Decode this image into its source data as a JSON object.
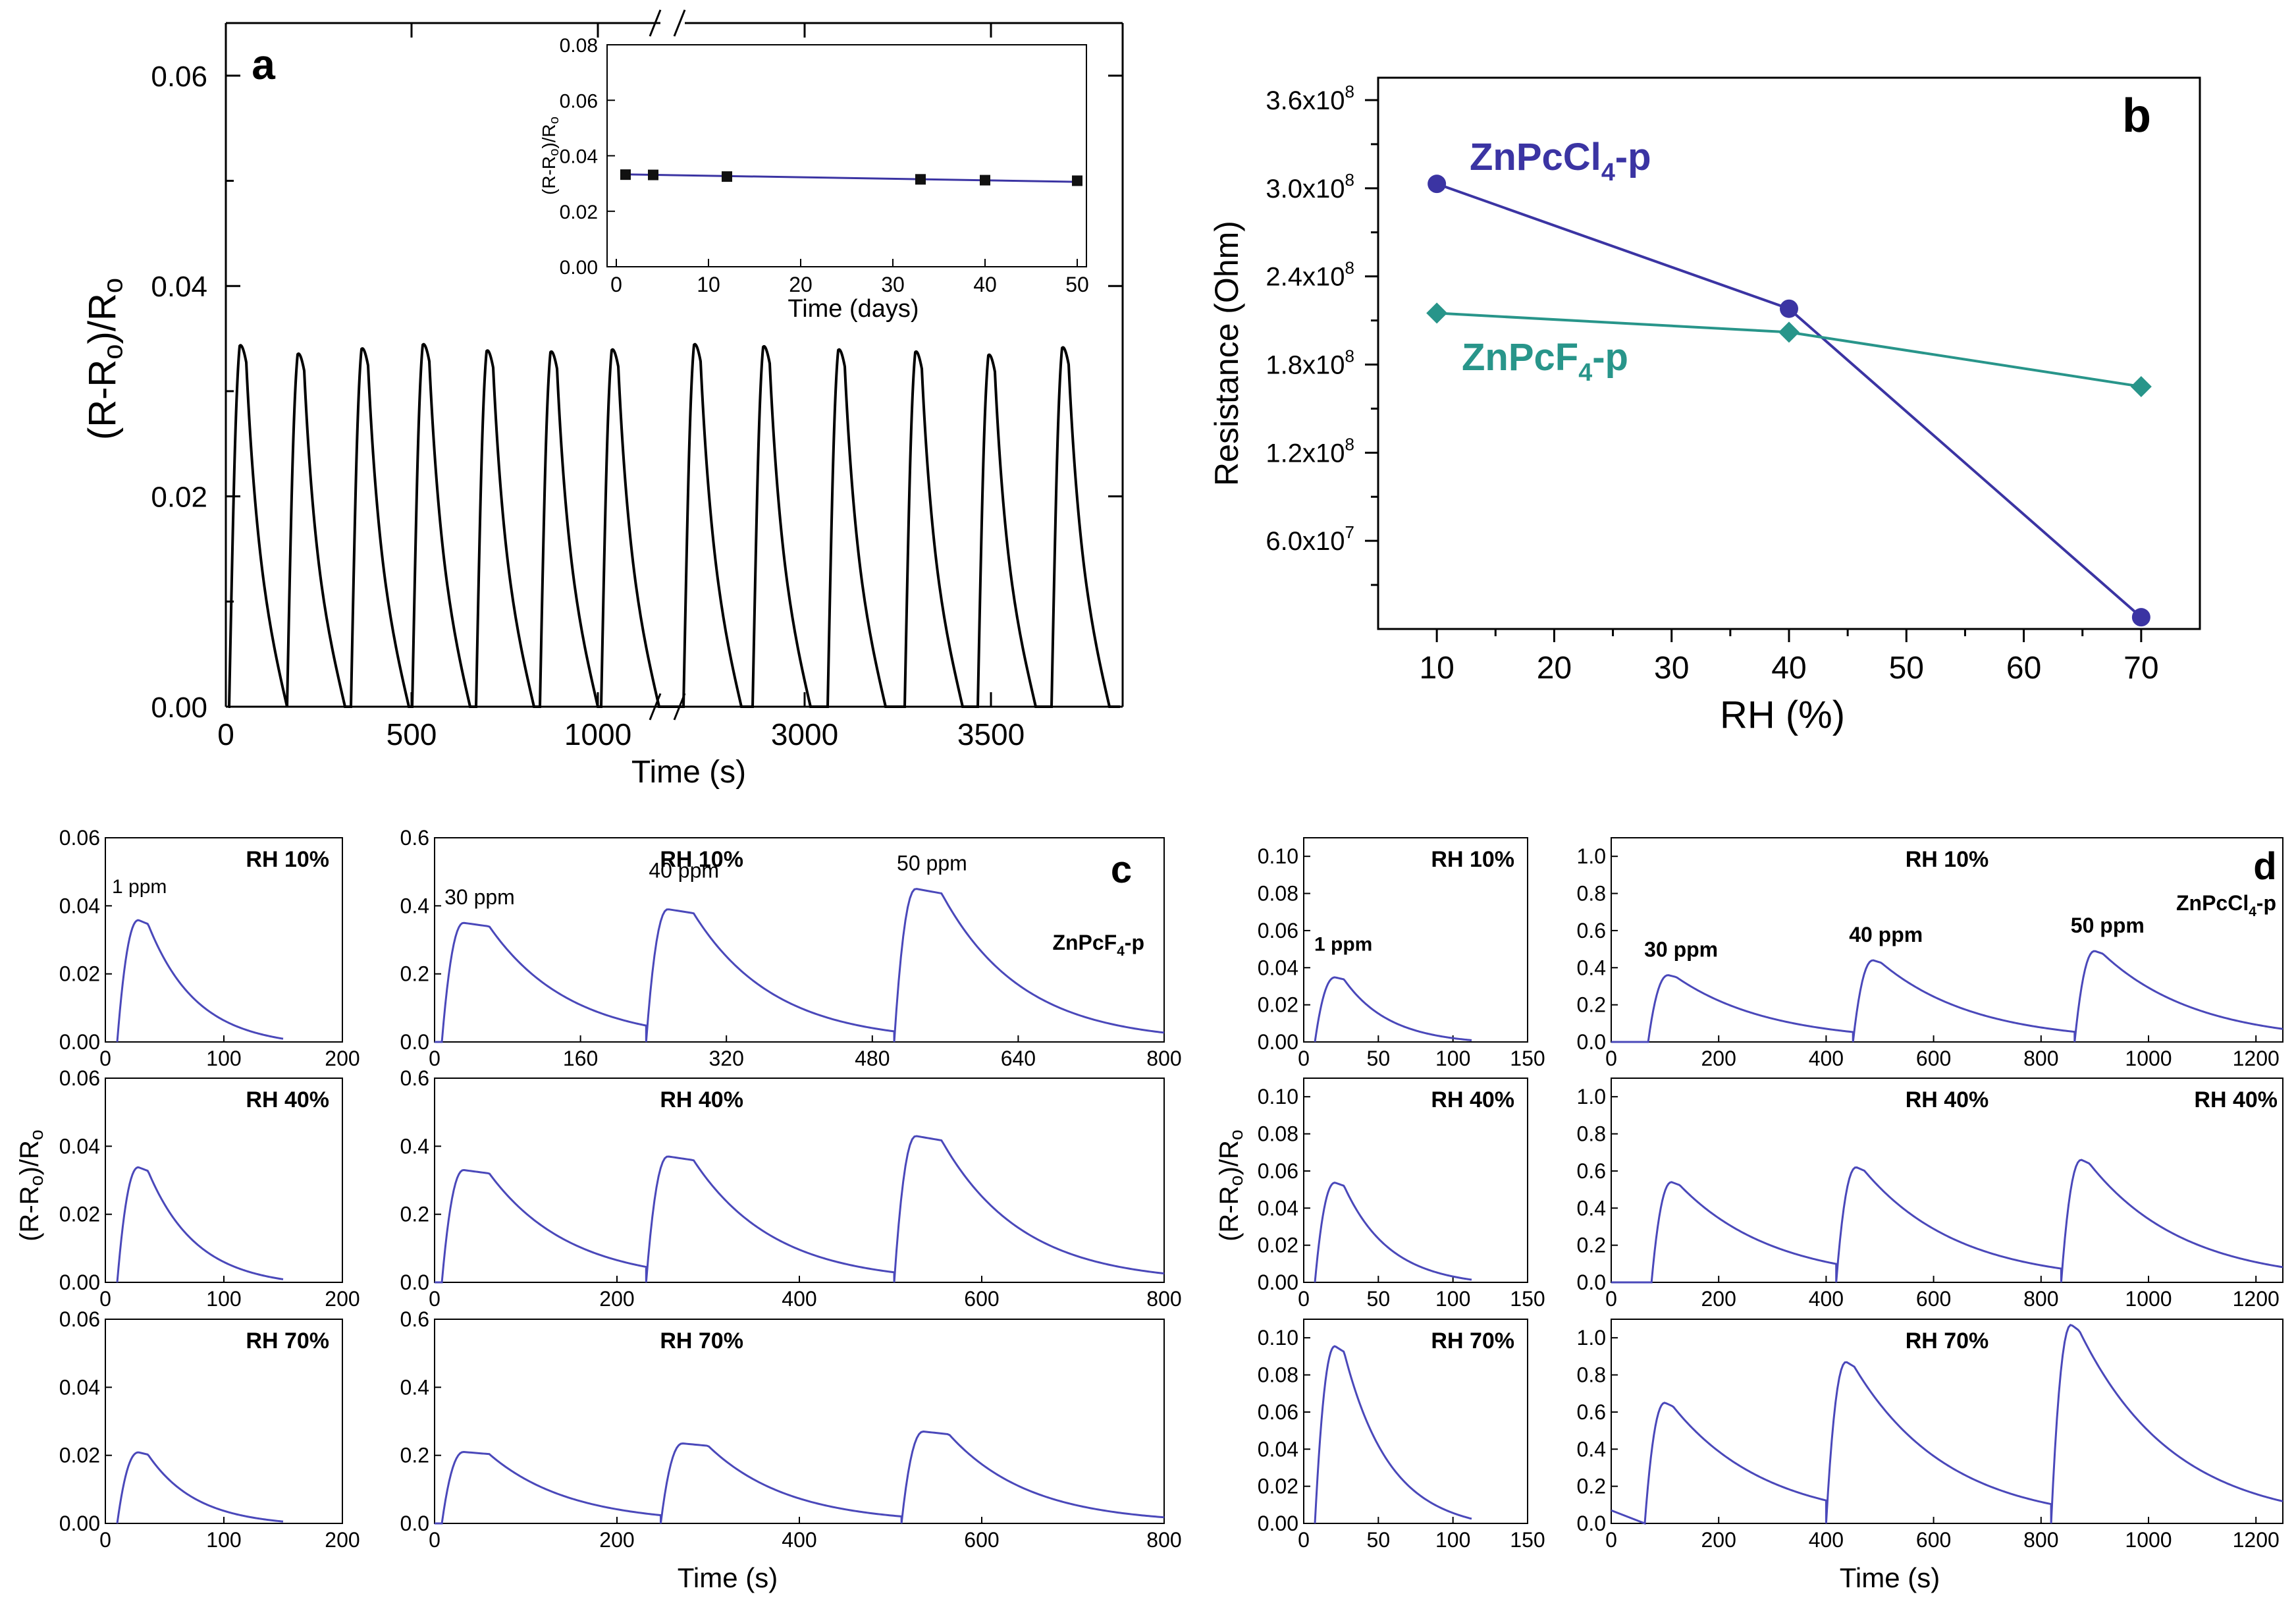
{
  "colors": {
    "axis": "#000000",
    "blue": "#3b34a3",
    "teal": "#28958a",
    "trace": "#4a48ba"
  },
  "chart_data": [
    {
      "id": "a",
      "type": "line",
      "panel_label": "a",
      "xlabel": "Time (s)",
      "ylabel": "(R-Ro)/Ro",
      "ylim": [
        0,
        0.065
      ],
      "yticks": [
        "0.00",
        "0.02",
        "0.04",
        "0.06"
      ],
      "xticks": [
        "0",
        "500",
        "1000",
        "3000",
        "3500"
      ],
      "series": [
        {
          "name": "response",
          "peak_values": [
            0.0343,
            0.0335,
            0.034,
            0.0344,
            0.0338,
            0.0337,
            0.0339,
            0.0344,
            0.0342,
            0.0339,
            0.0337,
            0.0334,
            0.0341
          ]
        }
      ],
      "inset": {
        "type": "line",
        "xlabel": "Time (days)",
        "ylabel": "(R-Ro)/Ro",
        "xlim": [
          0,
          50
        ],
        "ylim": [
          0,
          0.08
        ],
        "xticks": [
          "0",
          "10",
          "20",
          "30",
          "40",
          "50"
        ],
        "yticks": [
          "0.00",
          "0.02",
          "0.04",
          "0.06",
          "0.08"
        ],
        "x": [
          1,
          4,
          12,
          33,
          40,
          50
        ],
        "y": [
          0.0332,
          0.0331,
          0.0325,
          0.0315,
          0.0312,
          0.031
        ]
      }
    },
    {
      "id": "b",
      "type": "line",
      "panel_label": "b",
      "xlabel": "RH (%)",
      "ylabel": "Resistance (Ohm)",
      "xlim": [
        5,
        75
      ],
      "ylim": [
        0,
        360000000.0
      ],
      "xticks": [
        "10",
        "20",
        "30",
        "40",
        "50",
        "60",
        "70"
      ],
      "ytick_bases": [
        "6.0x10",
        "1.2x10",
        "1.8x10",
        "2.4x10",
        "3.0x10",
        "3.6x10"
      ],
      "ytick_exps": [
        "7",
        "8",
        "8",
        "8",
        "8",
        "8"
      ],
      "x": [
        10,
        40,
        70
      ],
      "series": [
        {
          "name": "ZnPcCl",
          "name_sub": "4",
          "name_suffix": "-p",
          "values": [
            303000000.0,
            218000000.0,
            8000000.0
          ]
        },
        {
          "name": "ZnPcF",
          "name_sub": "4",
          "name_suffix": "-p",
          "values": [
            215000000.0,
            202000000.0,
            165000000.0
          ]
        }
      ]
    },
    {
      "id": "c",
      "type": "line",
      "panel_label": "c",
      "ylabel": "(R-Ro)/Ro",
      "xlabel": "Time (s)",
      "compound": {
        "name": "ZnPcF",
        "sub": "4",
        "suffix": "-p"
      },
      "small": {
        "xlim": [
          0,
          200
        ],
        "ylim": [
          0,
          0.06
        ],
        "xticks": [
          "0",
          "100",
          "200"
        ],
        "yticks": [
          "0.00",
          "0.02",
          "0.04",
          "0.06"
        ],
        "rows": [
          {
            "rh": "RH 10%",
            "peak": 0.036,
            "conc_label": "1 ppm"
          },
          {
            "rh": "RH 40%",
            "peak": 0.034,
            "conc_label": ""
          },
          {
            "rh": "RH 70%",
            "peak": 0.021,
            "conc_label": ""
          }
        ]
      },
      "large": {
        "xlim": [
          0,
          800
        ],
        "ylim": [
          0,
          0.6
        ],
        "yticks": [
          "0.0",
          "0.2",
          "0.4",
          "0.6"
        ],
        "rows": [
          {
            "rh": "RH 10%",
            "xticks": [
              "0",
              "160",
              "320",
              "480",
              "640",
              "800"
            ],
            "peaks": [
              0.35,
              0.39,
              0.45
            ],
            "conc_labels": [
              "30 ppm",
              "40 ppm",
              "50 ppm"
            ]
          },
          {
            "rh": "RH 40%",
            "xticks": [
              "0",
              "200",
              "400",
              "600",
              "800"
            ],
            "peaks": [
              0.33,
              0.37,
              0.43
            ],
            "conc_labels": [
              "",
              "",
              ""
            ]
          },
          {
            "rh": "RH 70%",
            "xticks": [
              "0",
              "200",
              "400",
              "600",
              "800"
            ],
            "peaks": [
              0.21,
              0.235,
              0.27
            ],
            "conc_labels": [
              "",
              "",
              ""
            ]
          }
        ]
      }
    },
    {
      "id": "d",
      "type": "line",
      "panel_label": "d",
      "ylabel": "(R-Ro)/Ro",
      "xlabel": "Time (s)",
      "compound": {
        "name": "ZnPcCl",
        "sub": "4",
        "suffix": "-p"
      },
      "small": {
        "xlim": [
          0,
          150
        ],
        "ylim": [
          0,
          0.11
        ],
        "xticks": [
          "0",
          "50",
          "100",
          "150"
        ],
        "yticks": [
          "0.00",
          "0.02",
          "0.04",
          "0.06",
          "0.08",
          "0.10"
        ],
        "rows": [
          {
            "rh": "RH 10%",
            "peak": 0.035,
            "conc_label": "1 ppm"
          },
          {
            "rh": "RH 40%",
            "peak": 0.054,
            "conc_label": ""
          },
          {
            "rh": "RH 70%",
            "peak": 0.096,
            "conc_label": ""
          }
        ]
      },
      "large": {
        "xlim": [
          0,
          1250
        ],
        "ylim": [
          0,
          1.1
        ],
        "xticks": [
          "0",
          "200",
          "400",
          "600",
          "800",
          "1000",
          "1200"
        ],
        "yticks": [
          "0.0",
          "0.2",
          "0.4",
          "0.6",
          "0.8",
          "1.0"
        ],
        "rows": [
          {
            "rh": "RH 10%",
            "peaks": [
              0.36,
              0.44,
              0.49
            ],
            "conc_labels": [
              "30 ppm",
              "40 ppm",
              "50 ppm"
            ],
            "show_compound": true,
            "right_rh": ""
          },
          {
            "rh": "RH 40%",
            "peaks": [
              0.54,
              0.62,
              0.66
            ],
            "conc_labels": [
              "",
              "",
              ""
            ],
            "show_compound": false,
            "right_rh": "RH 40%"
          },
          {
            "rh": "RH 70%",
            "peaks": [
              0.65,
              0.87,
              1.07
            ],
            "conc_labels": [
              "",
              "",
              ""
            ],
            "show_compound": false,
            "right_rh": ""
          }
        ]
      }
    }
  ]
}
